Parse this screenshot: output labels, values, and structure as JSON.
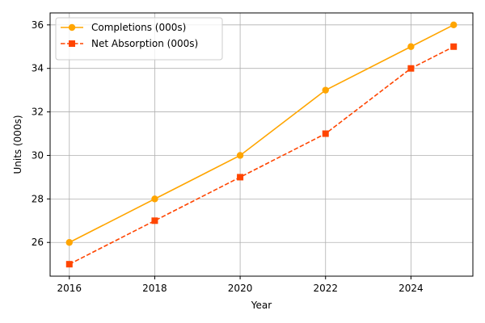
{
  "chart_data": {
    "type": "line",
    "title": "",
    "xlabel": "Year",
    "ylabel": "Units (000s)",
    "xlim": [
      2015.55,
      2025.45
    ],
    "ylim": [
      24.45,
      36.55
    ],
    "xticks": [
      2016,
      2018,
      2020,
      2022,
      2024
    ],
    "yticks": [
      26,
      28,
      30,
      32,
      34,
      36
    ],
    "grid": true,
    "legend_position": "upper-left",
    "x": [
      2016,
      2018,
      2020,
      2022,
      2024,
      2025
    ],
    "series": [
      {
        "name": "Completions (000s)",
        "values": [
          26,
          28,
          30,
          33,
          35,
          36
        ],
        "color": "#ffa500",
        "marker": "circle",
        "line_style": "solid"
      },
      {
        "name": "Net Absorption (000s)",
        "values": [
          25,
          27,
          29,
          31,
          34,
          35
        ],
        "color": "#ff4500",
        "marker": "square",
        "line_style": "dashed"
      }
    ]
  }
}
